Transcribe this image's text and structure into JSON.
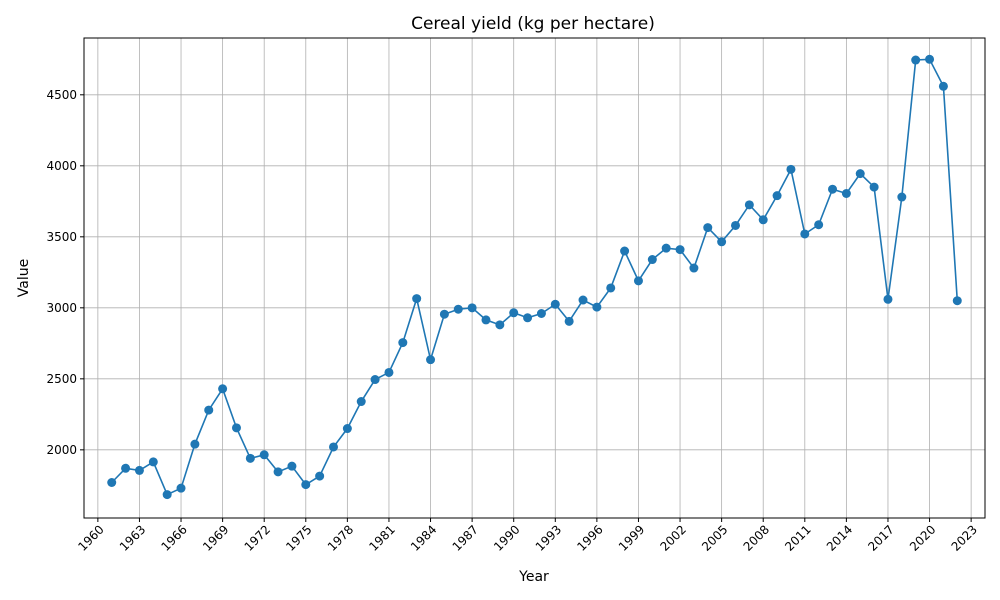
{
  "chart_data": {
    "type": "line",
    "title": "Cereal yield (kg per hectare)",
    "xlabel": "Year",
    "ylabel": "Value",
    "xlim": [
      1959,
      2024
    ],
    "ylim": [
      1520,
      4900
    ],
    "x_ticks": [
      1960,
      1963,
      1966,
      1969,
      1972,
      1975,
      1978,
      1981,
      1984,
      1987,
      1990,
      1993,
      1996,
      1999,
      2002,
      2005,
      2008,
      2011,
      2014,
      2017,
      2020,
      2023
    ],
    "y_ticks": [
      2000,
      2500,
      3000,
      3500,
      4000,
      4500
    ],
    "grid": true,
    "legend": "none",
    "colors": {
      "line": "#1f77b4",
      "grid": "#b0b0b0"
    },
    "series": [
      {
        "x": [
          1961,
          1962,
          1963,
          1964,
          1965,
          1966,
          1967,
          1968,
          1969,
          1970,
          1971,
          1972,
          1973,
          1974,
          1975,
          1976,
          1977,
          1978,
          1979,
          1980,
          1981,
          1982,
          1983,
          1984,
          1985,
          1986,
          1987,
          1988,
          1989,
          1990,
          1991,
          1992,
          1993,
          1994,
          1995,
          1996,
          1997,
          1998,
          1999,
          2000,
          2001,
          2002,
          2003,
          2004,
          2005,
          2006,
          2007,
          2008,
          2009,
          2010,
          2011,
          2012,
          2013,
          2014,
          2015,
          2016,
          2017,
          2018,
          2019,
          2020,
          2021,
          2022
        ],
        "values": [
          1770,
          1870,
          1855,
          1915,
          1685,
          1730,
          2040,
          2280,
          2430,
          2155,
          1940,
          1965,
          1845,
          1885,
          1755,
          1815,
          2020,
          2150,
          2340,
          2495,
          2545,
          2755,
          3065,
          2635,
          2955,
          2990,
          3000,
          2915,
          2880,
          2965,
          2930,
          2960,
          3025,
          2905,
          3055,
          3005,
          3140,
          3400,
          3190,
          3340,
          3420,
          3410,
          3280,
          3565,
          3465,
          3580,
          3725,
          3620,
          3790,
          3975,
          3520,
          3585,
          3835,
          3805,
          3945,
          3850,
          3060,
          3780,
          4745,
          4750,
          4560,
          3050
        ]
      }
    ]
  }
}
